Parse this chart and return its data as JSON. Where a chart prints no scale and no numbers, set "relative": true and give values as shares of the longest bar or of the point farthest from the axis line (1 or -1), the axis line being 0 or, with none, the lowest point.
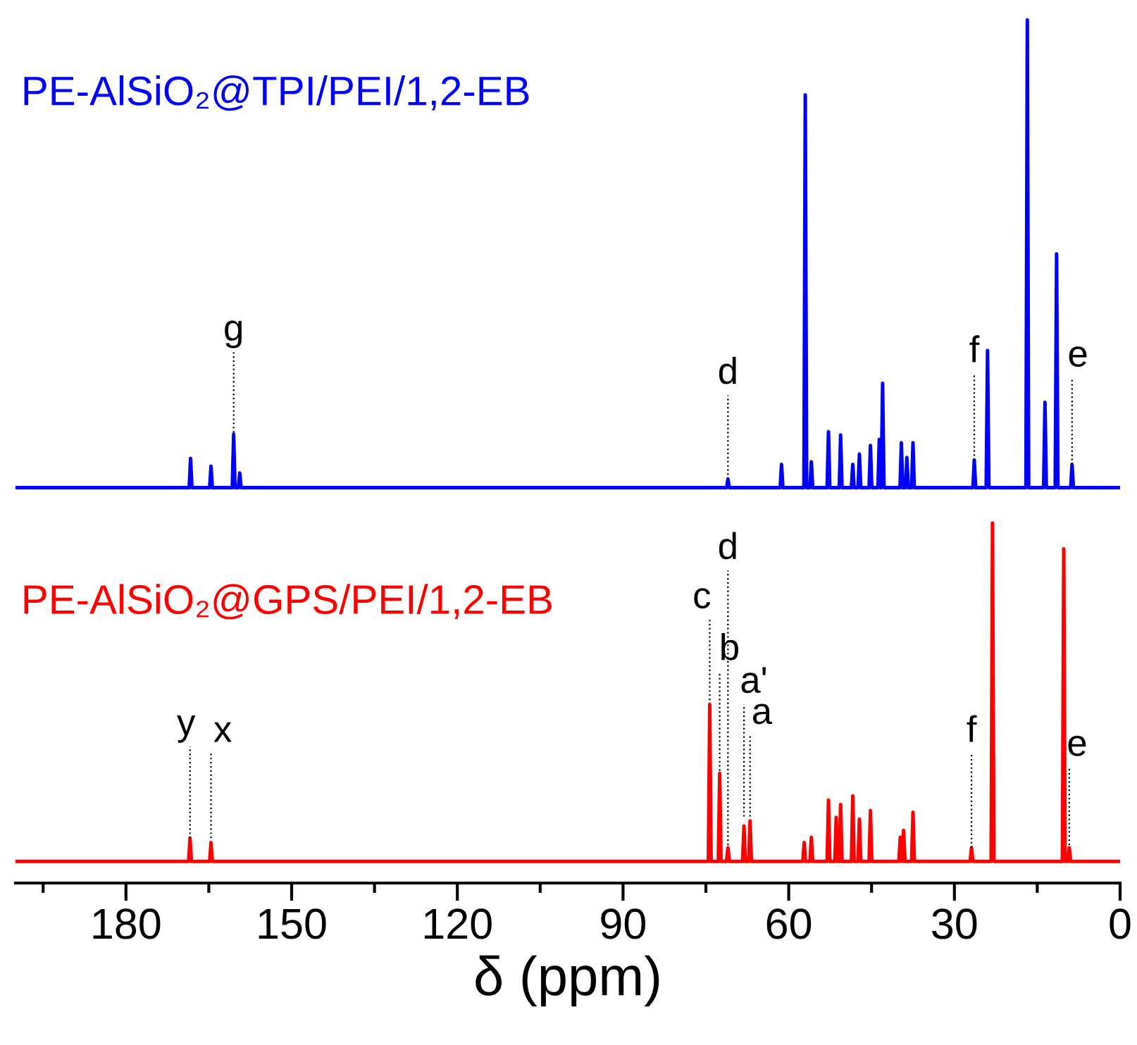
{
  "chart_data": {
    "type": "line",
    "relative": true,
    "xlabel": "δ (ppm)",
    "xlim": [
      200,
      0
    ],
    "xticks": [
      180,
      150,
      120,
      90,
      60,
      30,
      0,
      {
        "value": 195,
        "label": null
      },
      {
        "value": 165,
        "label": null
      },
      {
        "value": 135,
        "label": null
      },
      {
        "value": 105,
        "label": null
      },
      {
        "value": 75,
        "label": null
      },
      {
        "value": 45,
        "label": null
      },
      {
        "value": 15,
        "label": null
      }
    ],
    "legend": false,
    "grid": false,
    "series": [
      {
        "name": "PE-AlSiO₂@TPI/PEI/1,2-EB",
        "color": "#0000ff",
        "x": [
          200,
          168.55,
          168.3,
          168.05,
          164.85,
          164.6,
          164.35,
          160.75,
          160.5,
          160.25,
          159.65,
          159.4,
          159.15,
          71.25,
          71.0,
          70.75,
          61.55,
          61.3,
          61.05,
          57.25,
          57.0,
          56.75,
          56.15,
          55.9,
          55.65,
          53.05,
          52.8,
          52.55,
          50.85,
          50.6,
          50.35,
          48.65,
          48.4,
          48.15,
          47.45,
          47.2,
          46.95,
          45.45,
          45.2,
          44.95,
          43.85,
          43.6,
          43.35,
          43.25,
          43.0,
          42.75,
          39.85,
          39.6,
          39.35,
          38.85,
          38.6,
          38.35,
          37.75,
          37.5,
          37.25,
          26.65,
          26.4,
          26.15,
          24.25,
          24.0,
          23.75,
          17.05,
          16.8,
          16.55,
          13.85,
          13.6,
          13.35,
          11.75,
          11.5,
          11.25,
          8.95,
          8.7,
          8.45,
          0
        ],
        "values": [
          0.458,
          0.458,
          0.492,
          0.458,
          0.458,
          0.483,
          0.458,
          0.458,
          0.52,
          0.458,
          0.458,
          0.475,
          0.458,
          0.458,
          0.468,
          0.458,
          0.458,
          0.485,
          0.458,
          0.458,
          0.913,
          0.458,
          0.458,
          0.488,
          0.458,
          0.458,
          0.523,
          0.458,
          0.458,
          0.519,
          0.458,
          0.458,
          0.485,
          0.458,
          0.458,
          0.497,
          0.458,
          0.458,
          0.507,
          0.458,
          0.458,
          0.514,
          0.458,
          0.458,
          0.579,
          0.458,
          0.458,
          0.51,
          0.458,
          0.458,
          0.493,
          0.458,
          0.458,
          0.51,
          0.458,
          0.458,
          0.49,
          0.458,
          0.458,
          0.617,
          0.458,
          0.458,
          1.0,
          0.458,
          0.458,
          0.557,
          0.458,
          0.458,
          0.729,
          0.458,
          0.458,
          0.485,
          0.458,
          0.458
        ]
      },
      {
        "name": "PE-AlSiO₂@GPS/PEI/1,2-EB",
        "color": "#ff0000",
        "x": [
          200,
          168.65,
          168.4,
          168.15,
          164.85,
          164.6,
          164.35,
          74.55,
          74.3,
          74.05,
          72.75,
          72.5,
          72.25,
          71.25,
          71.0,
          70.75,
          68.35,
          68.1,
          67.85,
          67.25,
          67.0,
          66.75,
          57.45,
          57.2,
          56.95,
          56.15,
          55.9,
          55.65,
          53.05,
          52.8,
          52.55,
          51.65,
          51.4,
          51.15,
          50.85,
          50.6,
          50.35,
          48.65,
          48.4,
          48.15,
          47.45,
          47.2,
          46.95,
          45.45,
          45.2,
          44.95,
          40.05,
          39.8,
          39.55,
          39.45,
          39.2,
          38.95,
          37.75,
          37.5,
          37.25,
          27.15,
          26.9,
          26.65,
          23.35,
          23.1,
          22.85,
          10.45,
          10.2,
          9.95,
          9.45,
          9.2,
          8.95,
          0
        ],
        "values": [
          0.025,
          0.025,
          0.052,
          0.025,
          0.025,
          0.047,
          0.025,
          0.025,
          0.207,
          0.025,
          0.025,
          0.127,
          0.025,
          0.025,
          0.041,
          0.025,
          0.025,
          0.066,
          0.025,
          0.025,
          0.072,
          0.025,
          0.025,
          0.047,
          0.025,
          0.025,
          0.053,
          0.025,
          0.025,
          0.096,
          0.025,
          0.025,
          0.076,
          0.025,
          0.025,
          0.091,
          0.025,
          0.025,
          0.101,
          0.025,
          0.025,
          0.074,
          0.025,
          0.025,
          0.084,
          0.025,
          0.025,
          0.053,
          0.025,
          0.025,
          0.061,
          0.025,
          0.025,
          0.082,
          0.025,
          0.025,
          0.041,
          0.025,
          0.025,
          0.417,
          0.025,
          0.025,
          0.387,
          0.025,
          0.025,
          0.041,
          0.025,
          0.025
        ]
      }
    ],
    "annotations": [
      {
        "text": "g",
        "x": 160.5,
        "y": 0.522
      },
      {
        "text": "d",
        "x": 71.0,
        "y": 0.468
      },
      {
        "text": "f",
        "x": 26.4,
        "y": 0.49
      },
      {
        "text": "e",
        "x": 8.7,
        "y": 0.485
      },
      {
        "text": "y",
        "x": 168.4,
        "y": 0.052
      },
      {
        "text": "x",
        "x": 164.6,
        "y": 0.052
      },
      {
        "text": "c",
        "x": 74.3,
        "y": 0.212
      },
      {
        "text": "d",
        "x": 71.0,
        "y": 0.044
      },
      {
        "text": "b",
        "x": 72.5,
        "y": 0.13
      },
      {
        "text": "a'",
        "x": 68.1,
        "y": 0.077
      },
      {
        "text": "a",
        "x": 67.0,
        "y": 0.077
      },
      {
        "text": "f",
        "x": 26.9,
        "y": 0.041
      },
      {
        "text": "e",
        "x": 9.2,
        "y": 0.044
      }
    ]
  }
}
